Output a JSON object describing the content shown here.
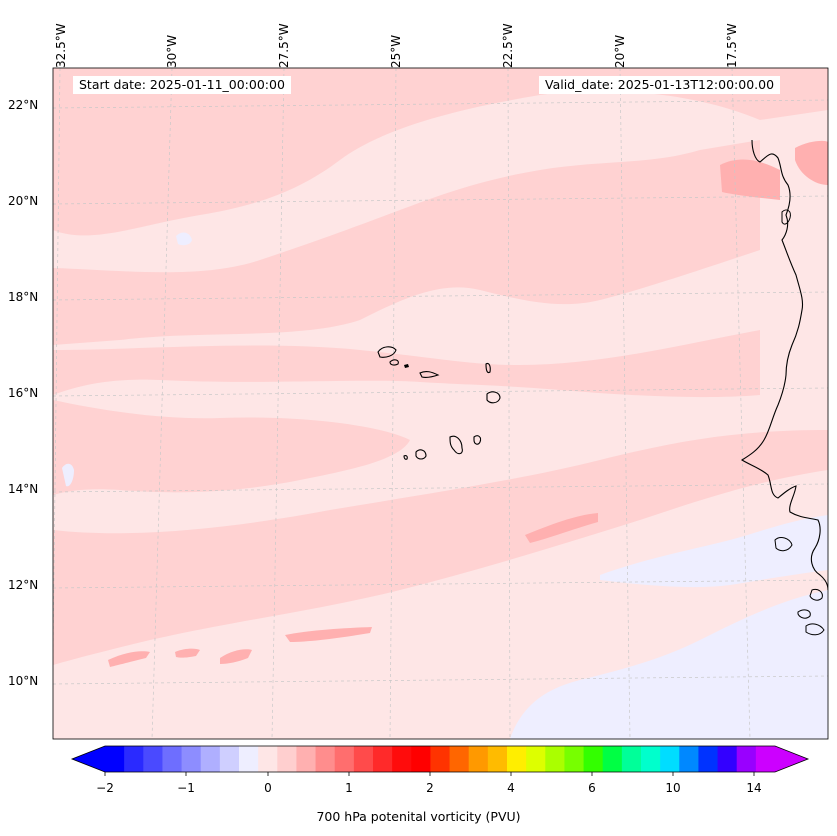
{
  "map": {
    "start_date": "Start date: 2025-01-11_00:00:00",
    "valid_date": "Valid_date: 2025-01-13T12:00:00.00",
    "lon_labels": [
      "32.5°W",
      "30°W",
      "27.5°W",
      "25°W",
      "22.5°W",
      "20°W",
      "17.5°W"
    ],
    "lat_labels": [
      "22°N",
      "20°N",
      "18°N",
      "16°N",
      "14°N",
      "12°N",
      "10°N"
    ],
    "field_colors": {
      "background": "#fee6e6",
      "band": "#ffd2d2",
      "band_strong": "#ffb0b0",
      "negative": "#eeeeff",
      "coast": "#000000",
      "grid": "#c8c8c8"
    }
  },
  "colorbar": {
    "label": "700 hPa potenital vorticity (PVU)",
    "ticks": [
      "−2",
      "−1",
      "0",
      "1",
      "2",
      "4",
      "6",
      "10",
      "14"
    ],
    "colors": [
      "#0000ff",
      "#2a2aff",
      "#4a4aff",
      "#6e6eff",
      "#8d8dff",
      "#afafff",
      "#cfcfff",
      "#eeeeff",
      "#fee6e6",
      "#ffcfcf",
      "#ffb0b0",
      "#ff8d8d",
      "#ff6e6e",
      "#ff4b4b",
      "#ff2a2a",
      "#ff0c0c",
      "#ff0000",
      "#ff3300",
      "#ff6600",
      "#ff9900",
      "#ffbb00",
      "#ffee00",
      "#ddff00",
      "#aaff00",
      "#77ff00",
      "#33ff00",
      "#00ff44",
      "#00ff99",
      "#00ffcc",
      "#00ddff",
      "#0088ff",
      "#0033ff",
      "#3300ff",
      "#9900ff",
      "#cc00ff"
    ],
    "under_color": "#0000ff",
    "over_color": "#cc00ff"
  }
}
